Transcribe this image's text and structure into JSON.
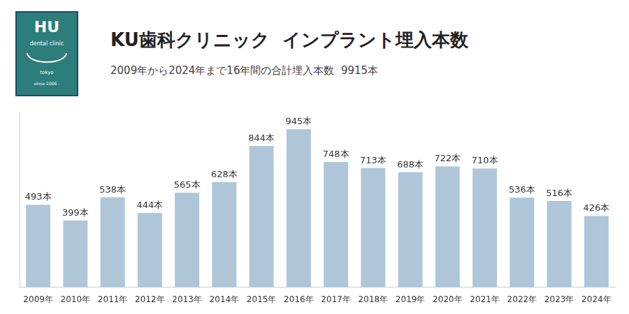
{
  "chart_data": {
    "type": "bar",
    "title": "KU歯科クリニック  インプラント埋入本数",
    "subtitle": "2009年から2024年まで16年間の合計埋入本数  9915本",
    "categories": [
      "2009年",
      "2010年",
      "2011年",
      "2012年",
      "2013年",
      "2014年",
      "2015年",
      "2016年",
      "2017年",
      "2018年",
      "2019年",
      "2020年",
      "2021年",
      "2022年",
      "2023年",
      "2024年"
    ],
    "values": [
      493,
      399,
      538,
      444,
      565,
      628,
      844,
      945,
      748,
      713,
      688,
      722,
      710,
      536,
      516,
      426
    ],
    "value_labels": [
      "493本",
      "399本",
      "538本",
      "444本",
      "565本",
      "628本",
      "844本",
      "945本",
      "748本",
      "713本",
      "688本",
      "722本",
      "710本",
      "536本",
      "516本",
      "426本"
    ],
    "data_labels": true,
    "color": "#aec6d8",
    "ylim": [
      0,
      1050
    ],
    "grid": false,
    "tick_labels": "x",
    "annotations": [
      "HU",
      "dental clinic",
      "tokyo",
      "since 2006 -"
    ]
  }
}
